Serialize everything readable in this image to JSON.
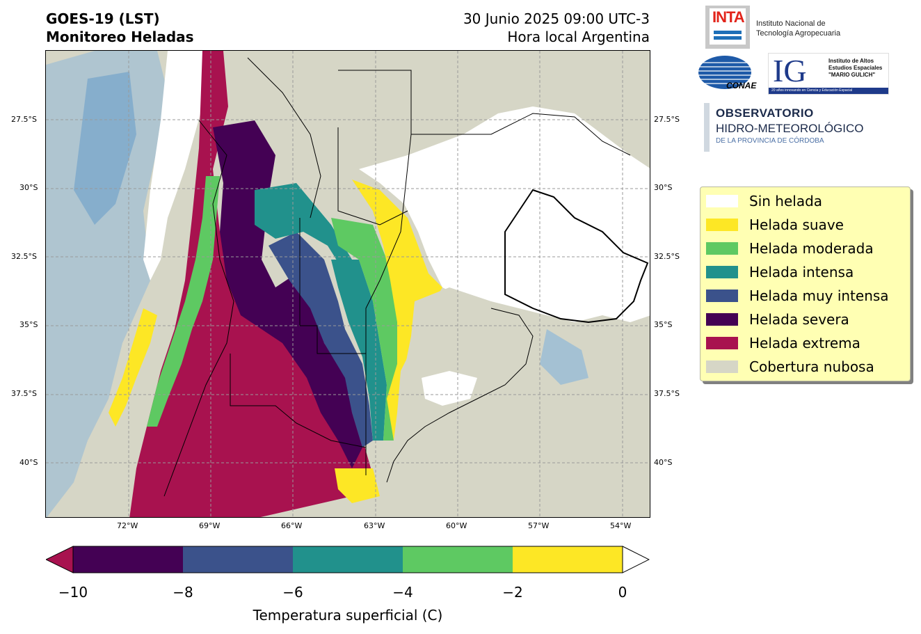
{
  "header": {
    "title_line1": "GOES-19 (LST)",
    "title_line2": "Monitoreo Heladas",
    "date_line1": "30 Junio 2025 09:00 UTC-3",
    "date_line2": "Hora local Argentina"
  },
  "map": {
    "lat_labels": [
      "27.5°S",
      "30°S",
      "32.5°S",
      "35°S",
      "37.5°S",
      "40°S"
    ],
    "lon_labels": [
      "72°W",
      "69°W",
      "66°W",
      "63°W",
      "60°W",
      "57°W",
      "54°W"
    ]
  },
  "colorbar": {
    "title": "Temperatura superficial (C)",
    "ticks": [
      "−10",
      "−8",
      "−6",
      "−4",
      "−2",
      "0"
    ],
    "colors": {
      "below_min": "#a8124f",
      "-10_to_-8": "#440154",
      "-8_to_-6": "#3b528b",
      "-6_to_-4": "#21918c",
      "-4_to_-2": "#5ec962",
      "-2_to_0": "#fde725",
      "above_max": "#ffffff"
    }
  },
  "legend": {
    "items": [
      {
        "label": "Sin helada",
        "color": "#ffffff"
      },
      {
        "label": "Helada suave",
        "color": "#fde725"
      },
      {
        "label": "Helada moderada",
        "color": "#5ec962"
      },
      {
        "label": "Helada intensa",
        "color": "#21918c"
      },
      {
        "label": "Helada muy intensa",
        "color": "#3b528b"
      },
      {
        "label": "Helada severa",
        "color": "#440154"
      },
      {
        "label": "Helada extrema",
        "color": "#a8124f"
      },
      {
        "label": "Cobertura nubosa",
        "color": "#d6d6c6"
      }
    ]
  },
  "logos": {
    "inta_word": "INTA",
    "inta_name_line1": "Instituto Nacional de",
    "inta_name_line2": "Tecnología Agropecuaria",
    "conae_word": "CONAE",
    "ig_letters": "IG",
    "ig_line1": "Instituto de Altos",
    "ig_line2": "Estudios Espaciales",
    "ig_line3": "\"MARIO GULICH\"",
    "ig_bar": "20 años innovando en Ciencia y Educación Espacial",
    "obs_line1": "OBSERVATORIO",
    "obs_line2": "HIDRO-METEOROLÓGICO",
    "obs_line3": "DE LA PROVINCIA DE CÓRDOBA"
  }
}
